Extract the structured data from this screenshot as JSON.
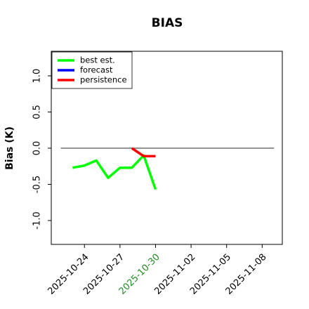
{
  "chart_data": {
    "type": "line",
    "title": "BIAS",
    "ylabel": "Bias (K)",
    "series": [
      {
        "name": "best est.",
        "color": "#00ff00",
        "x": [
          "2025-10-23",
          "2025-10-24",
          "2025-10-25",
          "2025-10-26",
          "2025-10-27",
          "2025-10-28",
          "2025-10-29",
          "2025-10-30"
        ],
        "values": [
          -0.27,
          -0.24,
          -0.17,
          -0.41,
          -0.27,
          -0.27,
          -0.1,
          -0.57
        ]
      },
      {
        "name": "forecast",
        "color": "#0000ff",
        "x": [],
        "values": []
      },
      {
        "name": "persistence",
        "color": "#ff0000",
        "x": [
          "2025-10-28",
          "2025-10-29",
          "2025-10-30"
        ],
        "values": [
          0.0,
          -0.11,
          -0.11
        ]
      }
    ],
    "xlim": [
      "2025-10-21.2",
      "2025-11-09.7"
    ],
    "xticks": [
      "2025-10-24",
      "2025-10-27",
      "2025-10-30",
      "2025-11-02",
      "2025-11-05",
      "2025-11-08"
    ],
    "xtick_colors": [
      "#000000",
      "#000000",
      "#228b22",
      "#000000",
      "#000000",
      "#000000"
    ],
    "ylim": [
      -1.33,
      1.34
    ],
    "yticks": [
      {
        "value": -1,
        "label": "-1.0"
      },
      {
        "value": -0.5,
        "label": "-0.5"
      },
      {
        "value": 0,
        "label": "0.0"
      },
      {
        "value": 0.5,
        "label": "0.5"
      },
      {
        "value": 1,
        "label": "1.0"
      }
    ],
    "hline": {
      "y": 0,
      "x": [
        "2025-10-22",
        "2025-11-09"
      ],
      "color": "#555555"
    },
    "legend": "upper left"
  }
}
